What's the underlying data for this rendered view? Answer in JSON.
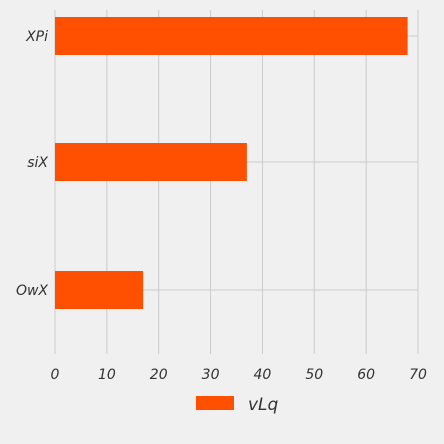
{
  "chart_data": {
    "type": "bar",
    "orientation": "horizontal",
    "categories": [
      "XPi",
      "siX",
      "OwX"
    ],
    "series": [
      {
        "name": "vLq",
        "values": [
          68,
          37,
          17
        ]
      }
    ],
    "xlim": [
      0,
      70
    ],
    "xticks": [
      0,
      10,
      20,
      30,
      40,
      50,
      60,
      70
    ],
    "grid": true,
    "legend": "bottom-center"
  },
  "colors": {
    "background": "#f0f0f0",
    "bar": "#ff4f00",
    "grid": "#cbcbcb"
  }
}
